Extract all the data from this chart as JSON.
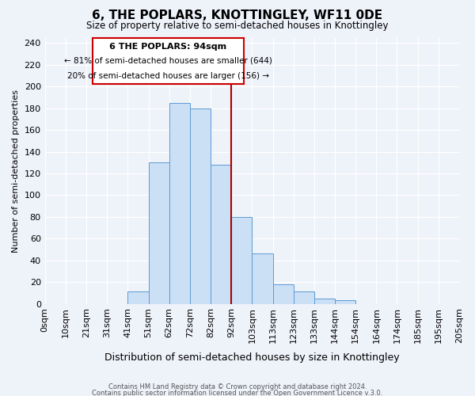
{
  "title": "6, THE POPLARS, KNOTTINGLEY, WF11 0DE",
  "subtitle": "Size of property relative to semi-detached houses in Knottingley",
  "xlabel": "Distribution of semi-detached houses by size in Knottingley",
  "ylabel": "Number of semi-detached properties",
  "bin_labels": [
    "0sqm",
    "10sqm",
    "21sqm",
    "31sqm",
    "41sqm",
    "51sqm",
    "62sqm",
    "72sqm",
    "82sqm",
    "92sqm",
    "103sqm",
    "113sqm",
    "123sqm",
    "133sqm",
    "144sqm",
    "154sqm",
    "164sqm",
    "174sqm",
    "185sqm",
    "195sqm",
    "205sqm"
  ],
  "bar_values": [
    0,
    0,
    0,
    0,
    11,
    130,
    185,
    180,
    128,
    80,
    46,
    18,
    11,
    5,
    3,
    0,
    0,
    0,
    0,
    0
  ],
  "bar_color": "#cce0f5",
  "bar_edge_color": "#5b9bd5",
  "vline_color": "#aa0000",
  "annotation_title": "6 THE POPLARS: 94sqm",
  "annotation_line1": "← 81% of semi-detached houses are smaller (644)",
  "annotation_line2": "20% of semi-detached houses are larger (156) →",
  "annotation_box_color": "#ffffff",
  "annotation_box_edge": "#cc0000",
  "ylim": [
    0,
    245
  ],
  "yticks": [
    0,
    20,
    40,
    60,
    80,
    100,
    120,
    140,
    160,
    180,
    200,
    220,
    240
  ],
  "footer1": "Contains HM Land Registry data © Crown copyright and database right 2024.",
  "footer2": "Contains public sector information licensed under the Open Government Licence v.3.0.",
  "background_color": "#eef2f9",
  "grid_color": "#ffffff"
}
